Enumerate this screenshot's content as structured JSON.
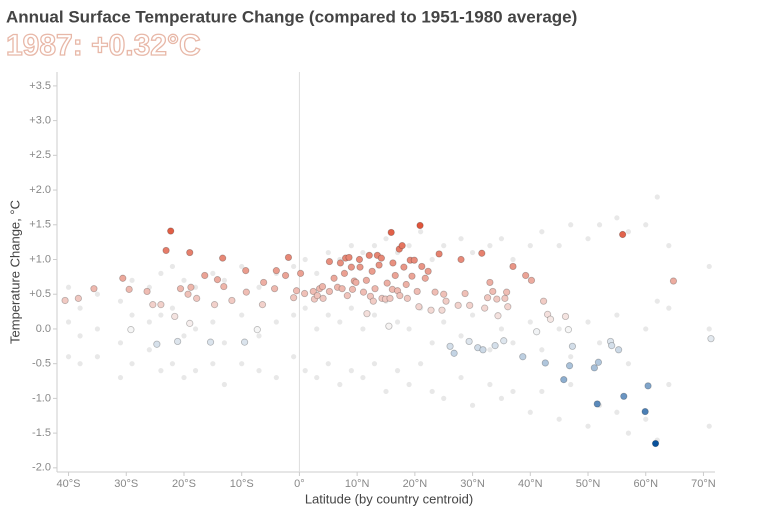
{
  "chart_data": {
    "type": "scatter",
    "title": "Annual Surface Temperature Change (compared to 1951-1980 average)",
    "subtitle": "1987: +0.32°C",
    "x_label": "Latitude (by country centroid)",
    "y_label": "Temperature Change, °C",
    "xlim": [
      -42,
      72
    ],
    "ylim": [
      -2.06,
      3.7
    ],
    "xticks": [
      {
        "value": -40,
        "label": "40°S"
      },
      {
        "value": -30,
        "label": "30°S"
      },
      {
        "value": -20,
        "label": "20°S"
      },
      {
        "value": -10,
        "label": "10°S"
      },
      {
        "value": 0,
        "label": "0°"
      },
      {
        "value": 10,
        "label": "10°N"
      },
      {
        "value": 20,
        "label": "20°N"
      },
      {
        "value": 30,
        "label": "30°N"
      },
      {
        "value": 40,
        "label": "40°N"
      },
      {
        "value": 50,
        "label": "50°N"
      },
      {
        "value": 60,
        "label": "60°N"
      },
      {
        "value": 70,
        "label": "70°N"
      }
    ],
    "yticks": [
      {
        "value": 3.5,
        "label": "+3.5"
      },
      {
        "value": 3,
        "label": "+3.0"
      },
      {
        "value": 2.5,
        "label": "+2.5"
      },
      {
        "value": 2,
        "label": "+2.0"
      },
      {
        "value": 1.5,
        "label": "+1.5"
      },
      {
        "value": 1,
        "label": "+1.0"
      },
      {
        "value": 0.5,
        "label": "+0.5"
      },
      {
        "value": 0,
        "label": "0.0"
      },
      {
        "value": -0.5,
        "label": "-0.5"
      },
      {
        "value": -1,
        "label": "-1.0"
      },
      {
        "value": -1.5,
        "label": "-1.5"
      },
      {
        "value": -2,
        "label": "-2.0"
      }
    ],
    "color_scale": {
      "domain": [
        -1.65,
        0,
        1.5
      ],
      "colors": [
        "#08519c",
        "#f7f7f7",
        "#e0543a"
      ]
    },
    "series": [
      {
        "color": "#e8e8e8",
        "x": [
          -40,
          -40,
          -40,
          -38,
          -38,
          -38,
          -35,
          -35,
          -35,
          -31,
          -31,
          -31,
          -29,
          -29,
          -29,
          -26,
          -26,
          -26,
          -24,
          -24,
          -24,
          -22,
          -22,
          -22,
          -20,
          -20,
          -20,
          -18,
          -18,
          -18,
          -15,
          -15,
          -15,
          -13,
          -13,
          -13,
          -10,
          -10,
          -10,
          -7,
          -7,
          -7,
          -4,
          -4,
          -4,
          -1,
          -1,
          -1,
          1,
          1,
          1,
          3,
          3,
          3,
          5,
          5,
          5,
          7,
          7,
          7,
          9,
          9,
          9,
          11,
          11,
          11,
          13,
          13,
          13,
          15,
          15,
          15,
          17,
          17,
          17,
          19,
          19,
          19,
          21,
          21,
          21,
          23,
          23,
          23,
          25,
          25,
          25,
          28,
          28,
          28,
          30,
          30,
          30,
          33,
          33,
          33,
          35,
          35,
          35,
          37,
          37,
          37,
          40,
          40,
          40,
          42,
          42,
          42,
          45,
          45,
          45,
          47,
          47,
          47,
          50,
          50,
          50,
          52,
          52,
          52,
          55,
          55,
          55,
          57,
          57,
          57,
          60,
          60,
          60,
          62,
          62,
          62,
          64,
          64,
          64,
          71,
          71,
          71
        ],
        "values": [
          0.6,
          0.1,
          -0.4,
          0.3,
          -0.1,
          -0.5,
          0.5,
          0.0,
          -0.4,
          0.4,
          -0.2,
          -0.7,
          0.7,
          0.2,
          -0.5,
          0.6,
          0.1,
          -0.3,
          0.8,
          0.2,
          -0.6,
          0.9,
          0.3,
          -0.5,
          0.7,
          -0.1,
          -0.7,
          0.6,
          0.0,
          -0.6,
          0.8,
          0.1,
          -0.5,
          0.7,
          -0.2,
          -0.8,
          0.9,
          0.2,
          -0.5,
          0.6,
          -0.1,
          -0.6,
          0.8,
          0.1,
          -0.7,
          0.9,
          0.2,
          -0.4,
          1.0,
          0.3,
          -0.6,
          0.8,
          0.0,
          -0.7,
          1.1,
          0.2,
          -0.5,
          1.0,
          0.1,
          -0.8,
          1.2,
          0.3,
          -0.6,
          1.1,
          0.0,
          -0.7,
          1.2,
          0.2,
          -0.5,
          1.3,
          0.4,
          -0.9,
          1.1,
          0.1,
          -0.6,
          1.2,
          0.0,
          -0.8,
          1.4,
          0.3,
          -0.5,
          1.0,
          -0.2,
          -0.9,
          1.2,
          0.1,
          -1.0,
          1.3,
          -0.1,
          -0.7,
          1.1,
          0.2,
          -1.1,
          1.2,
          -0.3,
          -0.8,
          1.3,
          0.0,
          -1.0,
          1.0,
          -0.2,
          -0.9,
          1.2,
          0.1,
          -1.2,
          1.4,
          -0.3,
          -0.9,
          1.2,
          0.0,
          -1.3,
          1.5,
          -0.4,
          -0.8,
          1.3,
          0.1,
          -1.4,
          1.5,
          -0.2,
          -1.1,
          1.6,
          0.2,
          -1.2,
          1.4,
          -0.5,
          -1.5,
          1.5,
          0.0,
          -1.3,
          1.9,
          0.4,
          -1.6,
          1.2,
          0.3,
          -0.8,
          0.9,
          0.0,
          -1.4
        ]
      },
      {
        "x": [
          -40.6,
          -38.3,
          -35.6,
          -30.6,
          -29.5,
          -29.2,
          -26.4,
          -25.4,
          -24.7,
          -24,
          -23.1,
          -22.3,
          -21.6,
          -21.1,
          -20.6,
          -19.3,
          -19,
          -18.8,
          -19,
          -17.8,
          -16.4,
          -15.4,
          -14.7,
          -14.2,
          -13.3,
          -13.1,
          -11.7,
          -9.3,
          -9.2,
          -9.5,
          -7.3,
          -6.4,
          -6.2,
          -4.3,
          -4,
          -2.4,
          -1.9,
          -1,
          -0.5,
          0.2,
          0.9,
          2.4,
          2.6,
          3.1,
          3.5,
          4,
          4.1,
          5.2,
          5.2,
          6,
          6.6,
          7.1,
          7.4,
          7.8,
          8,
          8.3,
          8.6,
          9,
          9.2,
          9.5,
          9.8,
          10.4,
          10.5,
          11.1,
          11.6,
          11.7,
          12.1,
          12.3,
          12.6,
          12.8,
          13.1,
          13.5,
          13.8,
          14.2,
          14.3,
          14.9,
          15.2,
          15.5,
          15.7,
          15.9,
          16.1,
          16.2,
          16.6,
          17,
          17.3,
          17.4,
          17.8,
          18.1,
          18.5,
          18.7,
          19.2,
          19.5,
          19.9,
          20.4,
          20.7,
          20.9,
          21.2,
          21.8,
          22.3,
          22.8,
          23.5,
          24.2,
          24.7,
          25,
          25.4,
          26.1,
          26.8,
          27.5,
          28,
          28.7,
          29.4,
          29.5,
          30.9,
          31.6,
          31.8,
          32.1,
          32.6,
          33,
          33.5,
          33.9,
          34.2,
          34.4,
          35.4,
          35.6,
          35.9,
          36.1,
          37,
          38.7,
          39.2,
          40.2,
          41.1,
          42.3,
          42.6,
          43,
          43.5,
          45.8,
          46.1,
          46.6,
          46.8,
          47.3,
          51.1,
          51.6,
          51.8,
          53.9,
          54.1,
          55.3,
          56,
          56.2,
          59.9,
          60.4,
          61.7,
          64.8,
          71.3
        ],
        "values": [
          0.41,
          0.44,
          0.58,
          0.73,
          0.57,
          -0.01,
          0.54,
          0.35,
          -0.22,
          0.35,
          1.13,
          1.41,
          0.18,
          -0.18,
          0.58,
          0.5,
          1.1,
          0.6,
          0.08,
          0.44,
          0.77,
          -0.19,
          0.35,
          0.71,
          1.02,
          0.61,
          0.41,
          0.84,
          0.53,
          -0.19,
          -0.01,
          0.35,
          0.67,
          0.58,
          0.84,
          0.77,
          1.03,
          0.45,
          0.55,
          0.8,
          0.51,
          0.54,
          0.43,
          0.48,
          0.58,
          0.61,
          0.44,
          0.97,
          0.54,
          0.73,
          0.6,
          0.95,
          0.58,
          0.8,
          1.02,
          0.48,
          1.03,
          0.89,
          0.57,
          0.69,
          0.67,
          1.0,
          0.89,
          0.53,
          0.7,
          0.22,
          1.06,
          0.47,
          0.83,
          0.4,
          0.58,
          1.06,
          0.92,
          1.02,
          0.44,
          0.43,
          0.66,
          0.04,
          0.44,
          1.39,
          0.57,
          0.95,
          0.77,
          0.55,
          1.15,
          0.48,
          1.2,
          0.89,
          0.64,
          0.44,
          0.99,
          0.76,
          0.99,
          0.54,
          0.32,
          1.49,
          0.9,
          0.73,
          0.83,
          0.27,
          0.53,
          1.08,
          0.27,
          0.5,
          0.4,
          -0.25,
          -0.35,
          0.34,
          1.0,
          0.51,
          -0.18,
          0.34,
          -0.27,
          1.09,
          -0.3,
          0.3,
          0.45,
          0.67,
          0.54,
          -0.24,
          0.43,
          0.19,
          -0.17,
          0.44,
          0.53,
          0.32,
          0.9,
          -0.4,
          0.77,
          0.7,
          -0.04,
          0.4,
          -0.49,
          0.21,
          0.14,
          -0.73,
          0.18,
          -0.01,
          -0.53,
          -0.25,
          -0.56,
          -1.08,
          -0.48,
          -0.18,
          -0.24,
          -0.3,
          1.36,
          -0.97,
          -1.19,
          -0.82,
          -1.65,
          0.69,
          -0.14
        ]
      }
    ]
  }
}
